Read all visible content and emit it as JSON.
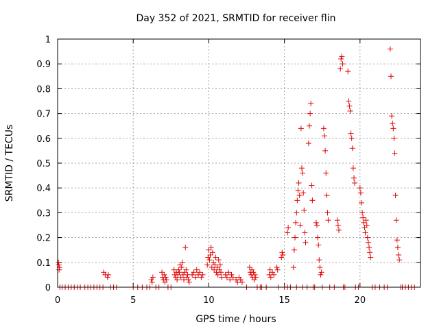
{
  "chart_data": {
    "type": "scatter",
    "title": "Day 352 of 2021, SRMTID for receiver flin",
    "xlabel": "GPS time / hours",
    "ylabel": "SRMTID / TECUs",
    "xlim": [
      0,
      24
    ],
    "ylim": [
      0,
      1
    ],
    "xticks": [
      0,
      5,
      10,
      15,
      20
    ],
    "yticks": [
      0,
      0.1,
      0.2,
      0.3,
      0.4,
      0.5,
      0.6,
      0.7,
      0.8,
      0.9,
      1
    ],
    "xtick_labels": [
      "0",
      "5",
      "10",
      "15",
      "20"
    ],
    "ytick_labels": [
      "0",
      "0.1",
      "0.2",
      "0.3",
      "0.4",
      "0.5",
      "0.6",
      "0.7",
      "0.8",
      "0.9",
      "1"
    ],
    "grid": true,
    "marker": "+",
    "color": "#e00000",
    "series": [
      {
        "name": "SRMTID",
        "points": [
          [
            0.05,
            0.1
          ],
          [
            0.08,
            0.09
          ],
          [
            0.1,
            0.07
          ],
          [
            0.12,
            0.08
          ],
          [
            0.15,
            0.0
          ],
          [
            0.3,
            0.0
          ],
          [
            0.5,
            0.0
          ],
          [
            0.7,
            0.0
          ],
          [
            0.9,
            0.0
          ],
          [
            1.1,
            0.0
          ],
          [
            1.3,
            0.0
          ],
          [
            1.5,
            0.0
          ],
          [
            1.8,
            0.0
          ],
          [
            2.0,
            0.0
          ],
          [
            2.2,
            0.0
          ],
          [
            2.4,
            0.0
          ],
          [
            2.6,
            0.0
          ],
          [
            2.8,
            0.0
          ],
          [
            3.0,
            0.0
          ],
          [
            3.05,
            0.06
          ],
          [
            3.15,
            0.05
          ],
          [
            3.3,
            0.04
          ],
          [
            3.35,
            0.05
          ],
          [
            3.5,
            0.0
          ],
          [
            3.7,
            0.0
          ],
          [
            3.9,
            0.0
          ],
          [
            5.0,
            0.0
          ],
          [
            5.3,
            0.0
          ],
          [
            5.6,
            0.0
          ],
          [
            5.9,
            0.0
          ],
          [
            6.1,
            0.0
          ],
          [
            6.2,
            0.03
          ],
          [
            6.25,
            0.02
          ],
          [
            6.3,
            0.04
          ],
          [
            6.5,
            0.0
          ],
          [
            6.7,
            0.0
          ],
          [
            6.9,
            0.06
          ],
          [
            6.95,
            0.04
          ],
          [
            7.0,
            0.03
          ],
          [
            7.05,
            0.05
          ],
          [
            7.1,
            0.02
          ],
          [
            7.15,
            0.04
          ],
          [
            7.2,
            0.03
          ],
          [
            7.3,
            0.0
          ],
          [
            7.5,
            0.0
          ],
          [
            7.7,
            0.07
          ],
          [
            7.75,
            0.05
          ],
          [
            7.8,
            0.04
          ],
          [
            7.85,
            0.06
          ],
          [
            7.9,
            0.03
          ],
          [
            7.95,
            0.05
          ],
          [
            8.0,
            0.07
          ],
          [
            8.05,
            0.06
          ],
          [
            8.1,
            0.09
          ],
          [
            8.15,
            0.04
          ],
          [
            8.2,
            0.08
          ],
          [
            8.25,
            0.1
          ],
          [
            8.3,
            0.05
          ],
          [
            8.35,
            0.03
          ],
          [
            8.4,
            0.06
          ],
          [
            8.45,
            0.16
          ],
          [
            8.5,
            0.07
          ],
          [
            8.55,
            0.04
          ],
          [
            8.6,
            0.05
          ],
          [
            8.65,
            0.03
          ],
          [
            8.7,
            0.02
          ],
          [
            8.9,
            0.05
          ],
          [
            9.0,
            0.06
          ],
          [
            9.1,
            0.04
          ],
          [
            9.2,
            0.07
          ],
          [
            9.3,
            0.05
          ],
          [
            9.4,
            0.06
          ],
          [
            9.5,
            0.04
          ],
          [
            9.6,
            0.05
          ],
          [
            9.9,
            0.09
          ],
          [
            9.95,
            0.12
          ],
          [
            10.0,
            0.15
          ],
          [
            10.05,
            0.11
          ],
          [
            10.1,
            0.13
          ],
          [
            10.15,
            0.16
          ],
          [
            10.2,
            0.08
          ],
          [
            10.25,
            0.14
          ],
          [
            10.3,
            0.1
          ],
          [
            10.35,
            0.07
          ],
          [
            10.4,
            0.09
          ],
          [
            10.45,
            0.12
          ],
          [
            10.5,
            0.06
          ],
          [
            10.55,
            0.08
          ],
          [
            10.6,
            0.05
          ],
          [
            10.65,
            0.11
          ],
          [
            10.7,
            0.07
          ],
          [
            10.75,
            0.09
          ],
          [
            10.8,
            0.06
          ],
          [
            10.85,
            0.04
          ],
          [
            11.1,
            0.05
          ],
          [
            11.2,
            0.04
          ],
          [
            11.3,
            0.06
          ],
          [
            11.4,
            0.03
          ],
          [
            11.5,
            0.05
          ],
          [
            11.6,
            0.04
          ],
          [
            11.8,
            0.03
          ],
          [
            11.9,
            0.02
          ],
          [
            12.0,
            0.04
          ],
          [
            12.1,
            0.03
          ],
          [
            12.2,
            0.02
          ],
          [
            12.5,
            0.0
          ],
          [
            12.7,
            0.08
          ],
          [
            12.75,
            0.06
          ],
          [
            12.8,
            0.05
          ],
          [
            12.85,
            0.07
          ],
          [
            12.9,
            0.04
          ],
          [
            12.95,
            0.06
          ],
          [
            13.0,
            0.03
          ],
          [
            13.05,
            0.05
          ],
          [
            13.1,
            0.04
          ],
          [
            13.5,
            0.0
          ],
          [
            13.8,
            0.0
          ],
          [
            14.0,
            0.05
          ],
          [
            14.05,
            0.07
          ],
          [
            14.1,
            0.04
          ],
          [
            14.2,
            0.06
          ],
          [
            14.3,
            0.05
          ],
          [
            14.5,
            0.08
          ],
          [
            14.55,
            0.07
          ],
          [
            14.8,
            0.12
          ],
          [
            14.85,
            0.14
          ],
          [
            14.9,
            0.13
          ],
          [
            15.2,
            0.22
          ],
          [
            15.25,
            0.24
          ],
          [
            15.4,
            0.0
          ],
          [
            15.6,
            0.08
          ],
          [
            15.65,
            0.15
          ],
          [
            15.7,
            0.2
          ],
          [
            15.75,
            0.26
          ],
          [
            15.8,
            0.3
          ],
          [
            15.85,
            0.35
          ],
          [
            15.9,
            0.39
          ],
          [
            15.95,
            0.42
          ],
          [
            16.0,
            0.37
          ],
          [
            16.05,
            0.25
          ],
          [
            16.1,
            0.64
          ],
          [
            16.15,
            0.48
          ],
          [
            16.2,
            0.46
          ],
          [
            16.25,
            0.38
          ],
          [
            16.3,
            0.31
          ],
          [
            16.35,
            0.22
          ],
          [
            16.4,
            0.18
          ],
          [
            16.6,
            0.58
          ],
          [
            16.65,
            0.65
          ],
          [
            16.7,
            0.7
          ],
          [
            16.75,
            0.74
          ],
          [
            16.8,
            0.41
          ],
          [
            16.85,
            0.35
          ],
          [
            17.1,
            0.26
          ],
          [
            17.15,
            0.25
          ],
          [
            17.2,
            0.2
          ],
          [
            17.25,
            0.17
          ],
          [
            17.3,
            0.11
          ],
          [
            17.35,
            0.08
          ],
          [
            17.4,
            0.05
          ],
          [
            17.45,
            0.06
          ],
          [
            17.6,
            0.64
          ],
          [
            17.65,
            0.61
          ],
          [
            17.7,
            0.55
          ],
          [
            17.75,
            0.46
          ],
          [
            17.8,
            0.37
          ],
          [
            17.85,
            0.3
          ],
          [
            17.9,
            0.27
          ],
          [
            18.5,
            0.27
          ],
          [
            18.55,
            0.25
          ],
          [
            18.6,
            0.23
          ],
          [
            18.7,
            0.88
          ],
          [
            18.75,
            0.92
          ],
          [
            18.8,
            0.93
          ],
          [
            18.85,
            0.9
          ],
          [
            19.2,
            0.87
          ],
          [
            19.25,
            0.75
          ],
          [
            19.3,
            0.73
          ],
          [
            19.35,
            0.71
          ],
          [
            19.4,
            0.62
          ],
          [
            19.45,
            0.6
          ],
          [
            19.5,
            0.56
          ],
          [
            19.55,
            0.48
          ],
          [
            19.6,
            0.44
          ],
          [
            19.65,
            0.42
          ],
          [
            20.0,
            0.4
          ],
          [
            20.05,
            0.38
          ],
          [
            20.1,
            0.34
          ],
          [
            20.15,
            0.3
          ],
          [
            20.2,
            0.28
          ],
          [
            20.25,
            0.26
          ],
          [
            20.3,
            0.24
          ],
          [
            20.35,
            0.22
          ],
          [
            20.4,
            0.27
          ],
          [
            20.45,
            0.25
          ],
          [
            20.5,
            0.2
          ],
          [
            20.55,
            0.18
          ],
          [
            20.6,
            0.16
          ],
          [
            20.65,
            0.14
          ],
          [
            20.7,
            0.12
          ],
          [
            21.0,
            0.0
          ],
          [
            21.3,
            0.0
          ],
          [
            21.6,
            0.0
          ],
          [
            22.0,
            0.96
          ],
          [
            22.05,
            0.85
          ],
          [
            22.1,
            0.69
          ],
          [
            22.15,
            0.66
          ],
          [
            22.2,
            0.64
          ],
          [
            22.25,
            0.6
          ],
          [
            22.3,
            0.54
          ],
          [
            22.35,
            0.37
          ],
          [
            22.4,
            0.27
          ],
          [
            22.45,
            0.19
          ],
          [
            22.5,
            0.16
          ],
          [
            22.55,
            0.13
          ],
          [
            22.6,
            0.11
          ],
          [
            22.8,
            0.0
          ],
          [
            23.0,
            0.0
          ],
          [
            23.2,
            0.0
          ],
          [
            13.2,
            0.0
          ],
          [
            13.4,
            0.0
          ],
          [
            14.6,
            0.0
          ],
          [
            15.0,
            0.0
          ],
          [
            15.2,
            0.0
          ],
          [
            15.8,
            0.0
          ],
          [
            16.2,
            0.0
          ],
          [
            16.5,
            0.0
          ],
          [
            16.9,
            0.0
          ],
          [
            17.0,
            0.0
          ],
          [
            17.5,
            0.0
          ],
          [
            18.0,
            0.0
          ],
          [
            18.3,
            0.0
          ],
          [
            18.9,
            0.0
          ],
          [
            19.0,
            0.0
          ],
          [
            19.7,
            0.0
          ],
          [
            19.9,
            0.0
          ],
          [
            20.8,
            0.0
          ],
          [
            21.8,
            0.0
          ],
          [
            22.7,
            0.0
          ],
          [
            23.4,
            0.0
          ],
          [
            23.6,
            0.0
          ]
        ]
      }
    ]
  }
}
